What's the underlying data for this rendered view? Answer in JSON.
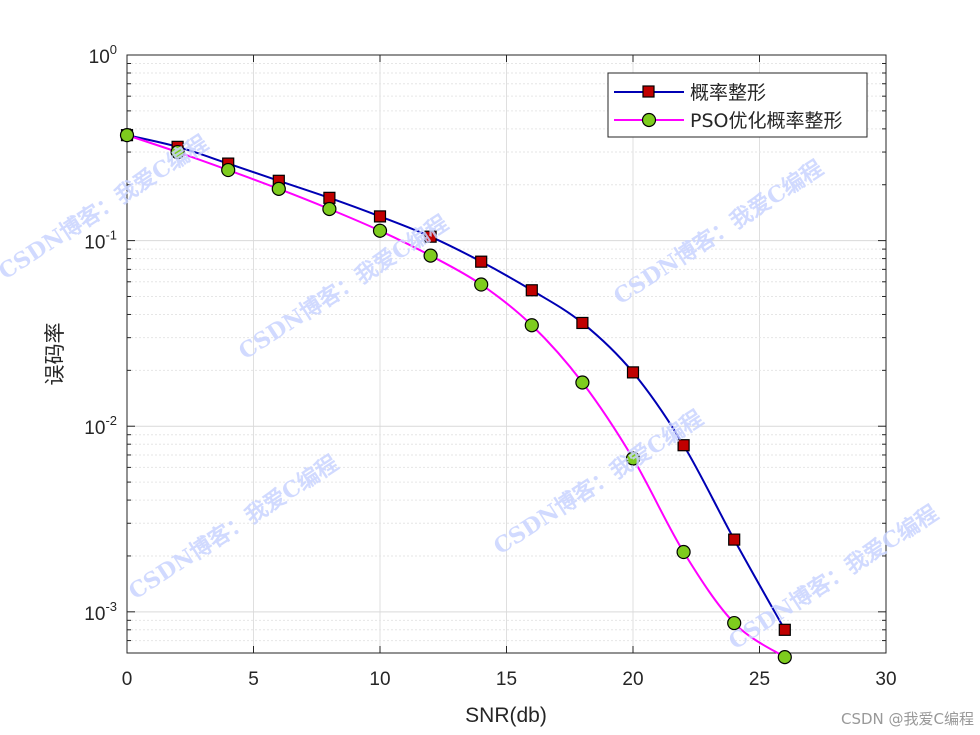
{
  "chart_data": {
    "type": "line",
    "xlabel": "SNR(db)",
    "ylabel": "误码率",
    "yscale": "log",
    "xlim": [
      0,
      30
    ],
    "ylim": [
      0.0006,
      1
    ],
    "xticks": [
      0,
      5,
      10,
      15,
      20,
      25,
      30
    ],
    "yticks": [
      {
        "value": 1,
        "base": "10",
        "exp": "0"
      },
      {
        "value": 0.1,
        "base": "10",
        "exp": "-1"
      },
      {
        "value": 0.01,
        "base": "10",
        "exp": "-2"
      },
      {
        "value": 0.001,
        "base": "10",
        "exp": "-3"
      }
    ],
    "grid": true,
    "legend_position": "top-right",
    "x": [
      0,
      2,
      4,
      6,
      8,
      10,
      12,
      14,
      16,
      18,
      20,
      22,
      24,
      26
    ],
    "series": [
      {
        "name": "概率整形",
        "color": "#0000b4",
        "marker": "square",
        "marker_color": "#c00000",
        "values": [
          0.37,
          0.32,
          0.26,
          0.21,
          0.17,
          0.135,
          0.105,
          0.077,
          0.054,
          0.036,
          0.0195,
          0.0079,
          0.00245,
          0.0008
        ]
      },
      {
        "name": "PSO优化概率整形",
        "color": "#ff00ff",
        "marker": "circle",
        "marker_color": "#7ecc1e",
        "values": [
          0.37,
          0.3,
          0.24,
          0.19,
          0.148,
          0.113,
          0.083,
          0.058,
          0.035,
          0.0172,
          0.0067,
          0.0021,
          0.00087,
          0.00057
        ]
      }
    ]
  },
  "watermarks": {
    "overlay": "CSDN博客：我爱C编程",
    "footer": "CSDN @我爱C编程"
  }
}
